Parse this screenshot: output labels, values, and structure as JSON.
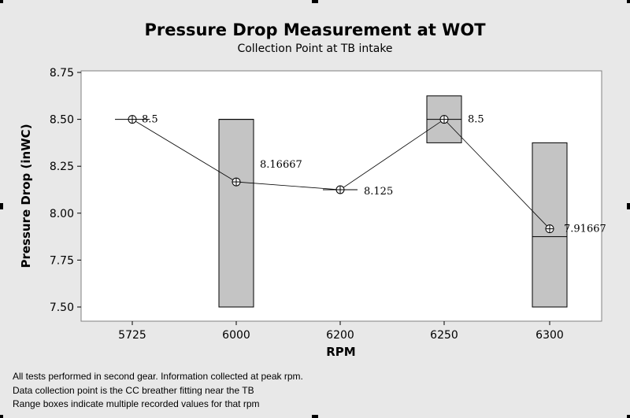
{
  "chart_data": {
    "type": "range-box-line",
    "title": "Pressure Drop Measurement at WOT",
    "subtitle": "Collection Point at TB intake",
    "xlabel": "RPM",
    "ylabel": "Pressure Drop (inWC)",
    "ylim": [
      7.5,
      8.75
    ],
    "yticks": [
      "8.75",
      "8.50",
      "8.25",
      "8.00",
      "7.75",
      "7.50"
    ],
    "categories": [
      "5725",
      "6000",
      "6200",
      "6250",
      "6300"
    ],
    "means": [
      8.5,
      8.16667,
      8.125,
      8.5,
      7.91667
    ],
    "mean_labels": [
      "8.5",
      "8.16667",
      "8.125",
      "8.5",
      "7.91667"
    ],
    "ranges": [
      {
        "low": 8.5,
        "high": 8.5,
        "median": 8.5
      },
      {
        "low": 7.5,
        "high": 8.5,
        "median": 8.5
      },
      {
        "low": 8.125,
        "high": 8.125,
        "median": 8.125
      },
      {
        "low": 8.375,
        "high": 8.625,
        "median": 8.5
      },
      {
        "low": 7.5,
        "high": 8.375,
        "median": 7.875
      }
    ],
    "colors": {
      "box_fill": "#c4c4c4",
      "plot_bg": "#ffffff",
      "page_bg": "#e8e8e8",
      "line": "#000000"
    },
    "grid": false,
    "legend": "none"
  },
  "notes": [
    "All tests performed in second gear. Information collected at peak rpm.",
    "Data collection point is the CC breather fitting near the TB",
    "Range boxes indicate multiple recorded values for that rpm"
  ]
}
